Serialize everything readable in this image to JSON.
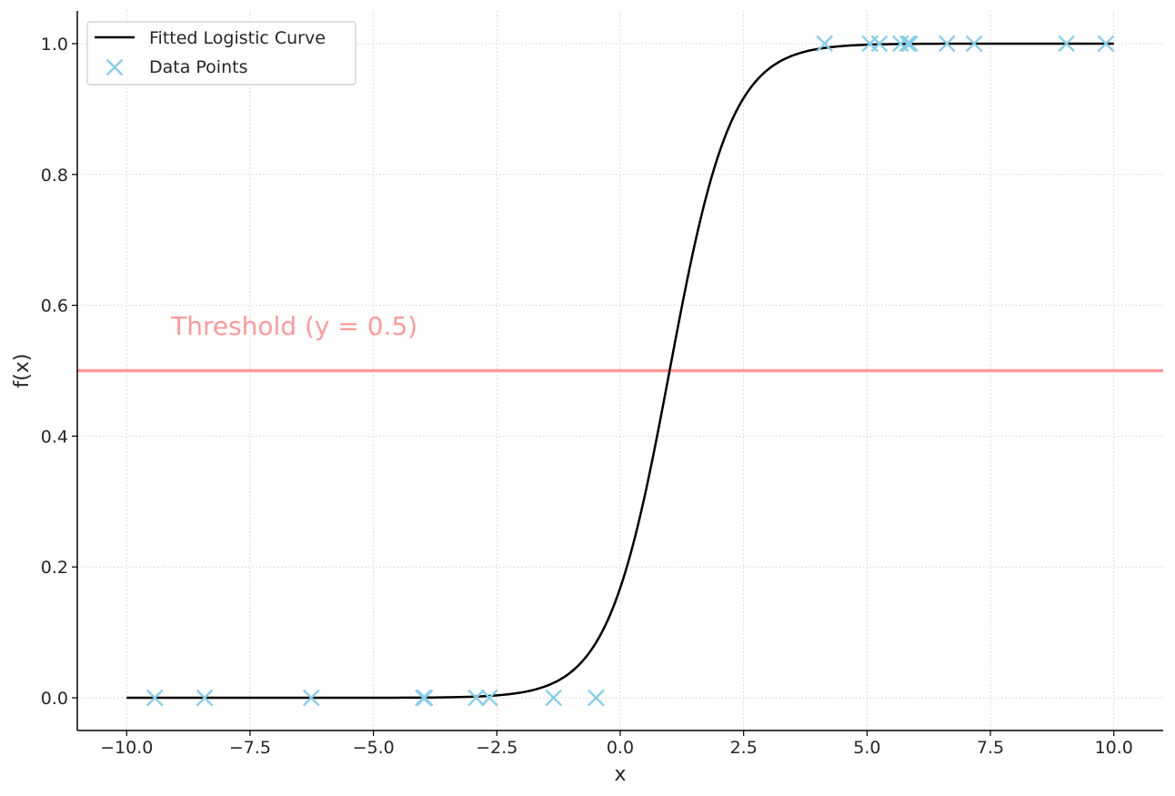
{
  "chart_data": {
    "type": "line",
    "title": "",
    "xlabel": "x",
    "ylabel": "f(x)",
    "xlim": [
      -11.0,
      11.0
    ],
    "ylim": [
      -0.05,
      1.05
    ],
    "grid": true,
    "legend_position": "top-left",
    "x_ticks": [
      {
        "value": -10.0,
        "label": "−10.0"
      },
      {
        "value": -7.5,
        "label": "−7.5"
      },
      {
        "value": -5.0,
        "label": "−5.0"
      },
      {
        "value": -2.5,
        "label": "−2.5"
      },
      {
        "value": 0.0,
        "label": "0.0"
      },
      {
        "value": 2.5,
        "label": "2.5"
      },
      {
        "value": 5.0,
        "label": "5.0"
      },
      {
        "value": 7.5,
        "label": "7.5"
      },
      {
        "value": 10.0,
        "label": "10.0"
      }
    ],
    "y_ticks": [
      {
        "value": 0.0,
        "label": "0.0"
      },
      {
        "value": 0.2,
        "label": "0.2"
      },
      {
        "value": 0.4,
        "label": "0.4"
      },
      {
        "value": 0.6,
        "label": "0.6"
      },
      {
        "value": 0.8,
        "label": "0.8"
      },
      {
        "value": 1.0,
        "label": "1.0"
      }
    ],
    "series": [
      {
        "name": "Fitted Logistic Curve",
        "kind": "line",
        "color": "#000000",
        "function": "logistic",
        "params": {
          "L": 1.0,
          "k": 1.6,
          "x0": 1.0
        },
        "x_range": [
          -10.0,
          10.0
        ]
      },
      {
        "name": "Data Points",
        "kind": "scatter",
        "marker": "x",
        "color": "#87CEEB",
        "x": [
          -9.43,
          -8.42,
          -6.26,
          -3.99,
          -3.96,
          -2.92,
          -2.65,
          -1.35,
          -0.49,
          4.14,
          5.06,
          5.25,
          5.68,
          5.82,
          5.87,
          6.62,
          7.17,
          9.04,
          9.84
        ],
        "y": [
          0,
          0,
          0,
          0,
          0,
          0,
          0,
          0,
          0,
          1,
          1,
          1,
          1,
          1,
          1,
          1,
          1,
          1,
          1
        ]
      }
    ],
    "annotations": [
      {
        "type": "hline",
        "y": 0.5,
        "color": "#FF9999",
        "text": "Threshold (y = 0.5)",
        "text_x": -9.1,
        "text_y": 0.555
      }
    ]
  }
}
